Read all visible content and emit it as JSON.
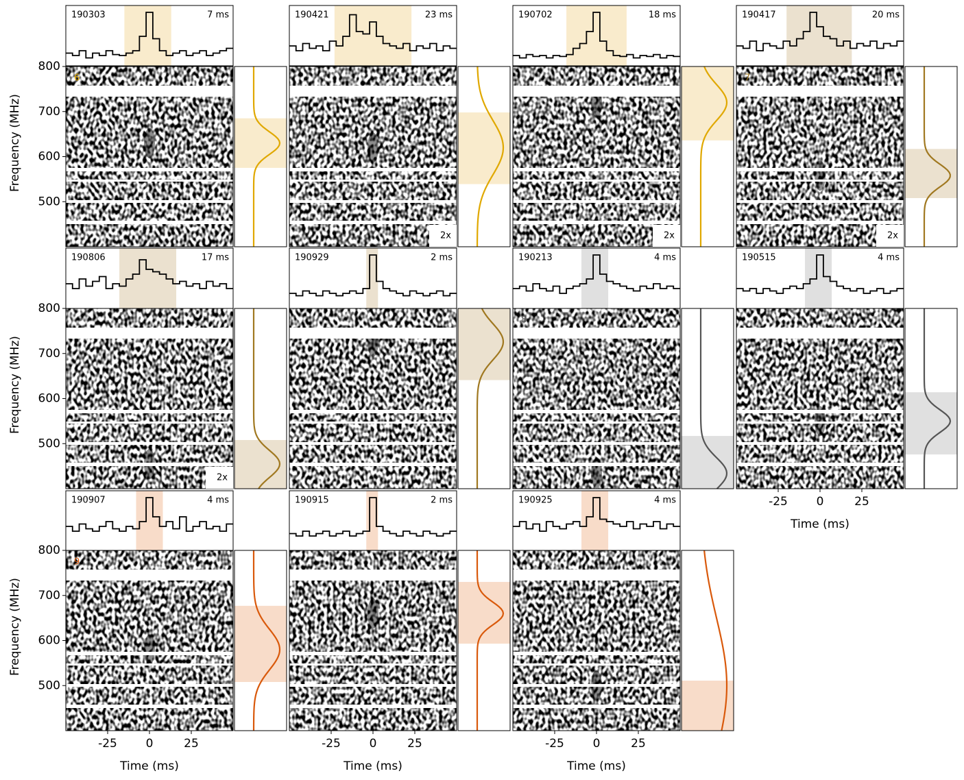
{
  "chart_data": {
    "type": "waterfall-grid",
    "xlabel": "Time (ms)",
    "ylabel": "Frequency (MHz)",
    "xlim": [
      -50,
      50
    ],
    "xticks": [
      -25,
      0,
      25
    ],
    "ylim": [
      400,
      800
    ],
    "yticks": [
      500,
      600,
      700,
      800
    ],
    "panels": [
      {
        "name": "190303",
        "width_label": "7 ms",
        "group": "6",
        "color": "#f9ebcc",
        "line_color": "#e0a800",
        "time_window": [
          -15,
          13
        ],
        "freq_window": [
          575,
          685
        ],
        "fit_center": 630,
        "fit_sigma": 25,
        "profile": [
          0.15,
          0.1,
          0.2,
          0.05,
          0.15,
          0.1,
          0.2,
          0.12,
          0.1,
          0.15,
          0.2,
          0.5,
          1.0,
          0.45,
          0.2,
          0.1,
          0.15,
          0.2,
          0.1,
          0.15,
          0.2,
          0.1,
          0.15,
          0.2,
          0.25
        ]
      },
      {
        "name": "190421",
        "width_label": "23 ms",
        "scale": "2x",
        "color": "#f9ebcc",
        "line_color": "#e0a800",
        "time_window": [
          -23,
          23
        ],
        "freq_window": [
          539,
          698
        ],
        "fit_center": 620,
        "fit_sigma": 60,
        "profile": [
          0.3,
          0.2,
          0.35,
          0.25,
          0.3,
          0.2,
          0.4,
          0.3,
          0.5,
          0.95,
          0.6,
          0.55,
          0.8,
          0.5,
          0.35,
          0.3,
          0.25,
          0.35,
          0.2,
          0.3,
          0.25,
          0.35,
          0.2,
          0.3,
          0.25
        ]
      },
      {
        "name": "190702",
        "width_label": "18 ms",
        "scale": "2x",
        "color": "#f9ebcc",
        "line_color": "#e0a800",
        "time_window": [
          -18,
          18
        ],
        "freq_window": [
          636,
          800
        ],
        "fit_center": 720,
        "fit_sigma": 40,
        "profile": [
          0.1,
          0.05,
          0.12,
          0.08,
          0.1,
          0.05,
          0.1,
          0.08,
          0.12,
          0.25,
          0.35,
          0.6,
          1.0,
          0.4,
          0.2,
          0.1,
          0.08,
          0.12,
          0.05,
          0.1,
          0.08,
          0.12,
          0.05,
          0.1,
          0.08
        ]
      },
      {
        "name": "190417",
        "width_label": "20 ms",
        "group": "7",
        "scale": "2x",
        "color": "#ebe1cf",
        "line_color": "#a07820",
        "time_window": [
          -20,
          19
        ],
        "freq_window": [
          508,
          617
        ],
        "fit_center": 558,
        "fit_sigma": 25,
        "profile": [
          0.3,
          0.25,
          0.4,
          0.2,
          0.35,
          0.3,
          0.25,
          0.4,
          0.3,
          0.45,
          0.6,
          1.0,
          0.7,
          0.5,
          0.45,
          0.3,
          0.4,
          0.25,
          0.35,
          0.3,
          0.4,
          0.25,
          0.35,
          0.3,
          0.4
        ]
      },
      {
        "name": "190806",
        "width_label": "17 ms",
        "scale": "2x",
        "color": "#ebe1cf",
        "line_color": "#a07820",
        "time_window": [
          -18,
          16
        ],
        "freq_window": [
          400,
          508
        ],
        "fit_center": 455,
        "fit_sigma": 30,
        "profile": [
          0.4,
          0.3,
          0.5,
          0.35,
          0.45,
          0.55,
          0.3,
          0.4,
          0.35,
          0.5,
          0.6,
          0.9,
          0.7,
          0.65,
          0.6,
          0.5,
          0.4,
          0.45,
          0.35,
          0.4,
          0.3,
          0.45,
          0.35,
          0.4,
          0.3
        ]
      },
      {
        "name": "190929",
        "width_label": "2 ms",
        "color": "#ebe1cf",
        "line_color": "#a07820",
        "time_window": [
          -4,
          3
        ],
        "freq_window": [
          641,
          800
        ],
        "fit_center": 726,
        "fit_sigma": 40,
        "profile": [
          0.2,
          0.15,
          0.25,
          0.2,
          0.15,
          0.25,
          0.2,
          0.15,
          0.2,
          0.25,
          0.2,
          0.3,
          1.0,
          0.45,
          0.3,
          0.25,
          0.2,
          0.15,
          0.25,
          0.2,
          0.15,
          0.2,
          0.25,
          0.15,
          0.2
        ]
      },
      {
        "name": "190213",
        "width_label": "4 ms",
        "group": "8",
        "color": "#e0e0e0",
        "line_color": "#555555",
        "time_window": [
          -9,
          7
        ],
        "freq_window": [
          400,
          517
        ],
        "fit_center": 434,
        "fit_sigma": 35,
        "profile": [
          0.3,
          0.35,
          0.25,
          0.4,
          0.3,
          0.25,
          0.35,
          0.2,
          0.3,
          0.35,
          0.4,
          0.5,
          1.0,
          0.6,
          0.45,
          0.4,
          0.35,
          0.3,
          0.25,
          0.35,
          0.3,
          0.4,
          0.3,
          0.35,
          0.3
        ]
      },
      {
        "name": "190515",
        "width_label": "4 ms",
        "color": "#e0e0e0",
        "line_color": "#555555",
        "time_window": [
          -9,
          7
        ],
        "freq_window": [
          476,
          614
        ],
        "fit_center": 550,
        "fit_sigma": 25,
        "profile": [
          0.3,
          0.25,
          0.3,
          0.2,
          0.3,
          0.25,
          0.2,
          0.3,
          0.35,
          0.3,
          0.4,
          0.5,
          1.0,
          0.55,
          0.45,
          0.35,
          0.3,
          0.25,
          0.3,
          0.2,
          0.25,
          0.3,
          0.2,
          0.25,
          0.3
        ]
      },
      {
        "name": "190907",
        "width_label": "4 ms",
        "group": "9",
        "color": "#f8dcc9",
        "line_color": "#d9590b",
        "time_window": [
          -8,
          8
        ],
        "freq_window": [
          508,
          677
        ],
        "fit_center": 580,
        "fit_sigma": 45,
        "profile": [
          0.4,
          0.3,
          0.45,
          0.35,
          0.3,
          0.4,
          0.5,
          0.35,
          0.3,
          0.4,
          0.35,
          0.5,
          1.0,
          0.6,
          0.4,
          0.5,
          0.35,
          0.6,
          0.3,
          0.4,
          0.5,
          0.35,
          0.4,
          0.3,
          0.45
        ]
      },
      {
        "name": "190915",
        "width_label": "2 ms",
        "color": "#f8dcc9",
        "line_color": "#d9590b",
        "time_window": [
          -4,
          3
        ],
        "freq_window": [
          593,
          730
        ],
        "fit_center": 660,
        "fit_sigma": 25,
        "profile": [
          0.25,
          0.2,
          0.3,
          0.2,
          0.25,
          0.3,
          0.2,
          0.25,
          0.3,
          0.2,
          0.25,
          0.3,
          1.0,
          0.4,
          0.3,
          0.25,
          0.2,
          0.3,
          0.25,
          0.2,
          0.3,
          0.25,
          0.2,
          0.25,
          0.3
        ]
      },
      {
        "name": "190925",
        "width_label": "4 ms",
        "color": "#f8dcc9",
        "line_color": "#d9590b",
        "time_window": [
          -9,
          7
        ],
        "freq_window": [
          400,
          511
        ],
        "fit_center": 500,
        "fit_sigma": 150,
        "profile": [
          0.4,
          0.5,
          0.35,
          0.45,
          0.3,
          0.5,
          0.4,
          0.35,
          0.45,
          0.5,
          0.4,
          0.6,
          1.0,
          0.55,
          0.5,
          0.45,
          0.4,
          0.5,
          0.35,
          0.45,
          0.4,
          0.5,
          0.35,
          0.45,
          0.4
        ]
      }
    ]
  }
}
